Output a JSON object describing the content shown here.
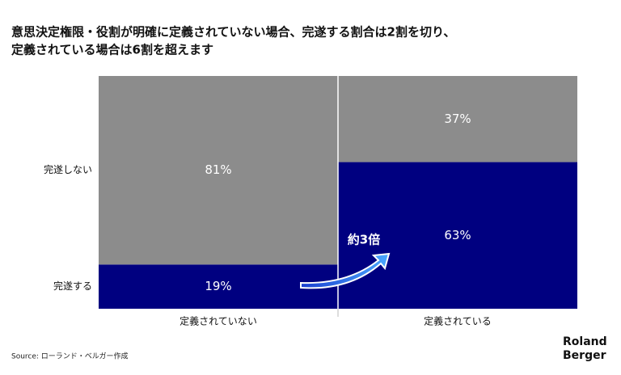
{
  "chart_data": {
    "type": "mosaic",
    "title": [
      "意思決定権限・役割が明確に定義されていない場合、完遂する割合は2割を切り、",
      "定義されている場合は6割を超えます"
    ],
    "categories": [
      "定義されていない",
      "定義されている"
    ],
    "series": [
      {
        "name": "完遂する",
        "color": "#000080",
        "values": [
          19,
          63
        ],
        "value_labels": [
          "19%",
          "63%"
        ]
      },
      {
        "name": "完遂しない",
        "color": "#8c8c8c",
        "values": [
          81,
          37
        ],
        "value_labels": [
          "81%",
          "37%"
        ]
      }
    ],
    "ylim": [
      0,
      100
    ],
    "annotation": "約3倍",
    "source": "Source: ローランド・ベルガー作成",
    "logo": [
      "Roland",
      "Berger"
    ]
  }
}
